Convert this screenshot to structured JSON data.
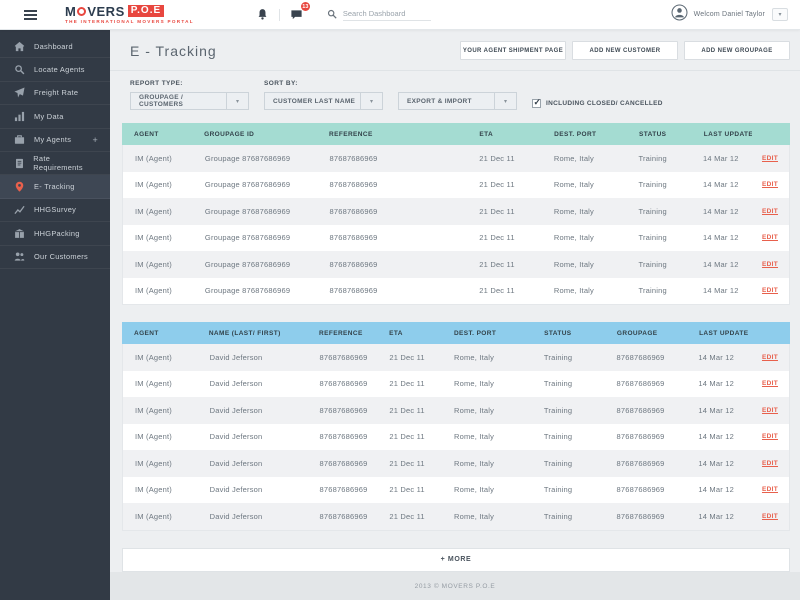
{
  "topbar": {
    "brand": {
      "word_start": "M",
      "word_end": "VERS",
      "box": "P.O.E",
      "tagline": "THE INTERNATIONAL MOVERS PORTAL"
    },
    "messages_badge": "13",
    "search_placeholder": "Search Dashboard",
    "user_greeting": "Welcom Daniel Taylor"
  },
  "sidebar": {
    "items": [
      {
        "label": "Dashboard",
        "icon": "home"
      },
      {
        "label": "Locate Agents",
        "icon": "search"
      },
      {
        "label": "Freight Rate",
        "icon": "plane"
      },
      {
        "label": "My Data",
        "icon": "bar-chart"
      },
      {
        "label": "My Agents",
        "icon": "briefcase",
        "suffix": "+"
      },
      {
        "label": "Rate Requirements",
        "icon": "clipboard"
      },
      {
        "label": "E- Tracking",
        "icon": "map-pin",
        "active": true
      },
      {
        "label": "HHGSurvey",
        "icon": "line-chart"
      },
      {
        "label": "HHGPacking",
        "icon": "package"
      },
      {
        "label": "Our Customers",
        "icon": "users"
      }
    ]
  },
  "page": {
    "title": "E - Tracking",
    "buttons": {
      "agent_shipment": "YOUR AGENT SHIPMENT PAGE",
      "add_customer": "ADD NEW CUSTOMER",
      "add_groupage": "ADD NEW GROUPAGE"
    }
  },
  "filters": {
    "report_type_label": "REPORT TYPE:",
    "report_type_value": "GROUPAGE / CUSTOMERS",
    "sort_by_label": "SORT BY:",
    "sort_by_value": "CUSTOMER LAST NAME",
    "export_import_value": "EXPORT & IMPORT",
    "checkbox_label": "INCLUDING CLOSED/ CANCELLED",
    "checkbox_checked": true
  },
  "groupage_table": {
    "headers": [
      "AGENT",
      "GROUPAGE ID",
      "REFERENCE",
      "ETA",
      "DEST. PORT",
      "STATUS",
      "LAST UPDATE"
    ],
    "edit_label": "EDIT",
    "rows": [
      [
        "IM (Agent)",
        "Groupage 87687686969",
        "87687686969",
        "21 Dec 11",
        "Rome, Italy",
        "Training",
        "14 Mar 12"
      ],
      [
        "IM (Agent)",
        "Groupage 87687686969",
        "87687686969",
        "21 Dec 11",
        "Rome, Italy",
        "Training",
        "14 Mar 12"
      ],
      [
        "IM (Agent)",
        "Groupage 87687686969",
        "87687686969",
        "21 Dec 11",
        "Rome, Italy",
        "Training",
        "14 Mar 12"
      ],
      [
        "IM (Agent)",
        "Groupage 87687686969",
        "87687686969",
        "21 Dec 11",
        "Rome, Italy",
        "Training",
        "14 Mar 12"
      ],
      [
        "IM (Agent)",
        "Groupage 87687686969",
        "87687686969",
        "21 Dec 11",
        "Rome, Italy",
        "Training",
        "14 Mar 12"
      ],
      [
        "IM (Agent)",
        "Groupage 87687686969",
        "87687686969",
        "21 Dec 11",
        "Rome, Italy",
        "Training",
        "14 Mar 12"
      ]
    ]
  },
  "customers_table": {
    "headers": [
      "AGENT",
      "NAME (LAST/ FIRST)",
      "REFERENCE",
      "ETA",
      "DEST. PORT",
      "STATUS",
      "GROUPAGE",
      "LAST UPDATE"
    ],
    "edit_label": "EDIT",
    "rows": [
      [
        "IM (Agent)",
        "David Jeferson",
        "87687686969",
        "21 Dec 11",
        "Rome, Italy",
        "Training",
        "87687686969",
        "14 Mar 12"
      ],
      [
        "IM (Agent)",
        "David Jeferson",
        "87687686969",
        "21 Dec 11",
        "Rome, Italy",
        "Training",
        "87687686969",
        "14 Mar 12"
      ],
      [
        "IM (Agent)",
        "David Jeferson",
        "87687686969",
        "21 Dec 11",
        "Rome, Italy",
        "Training",
        "87687686969",
        "14 Mar 12"
      ],
      [
        "IM (Agent)",
        "David Jeferson",
        "87687686969",
        "21 Dec 11",
        "Rome, Italy",
        "Training",
        "87687686969",
        "14 Mar 12"
      ],
      [
        "IM (Agent)",
        "David Jeferson",
        "87687686969",
        "21 Dec 11",
        "Rome, Italy",
        "Training",
        "87687686969",
        "14 Mar 12"
      ],
      [
        "IM (Agent)",
        "David Jeferson",
        "87687686969",
        "21 Dec 11",
        "Rome, Italy",
        "Training",
        "87687686969",
        "14 Mar 12"
      ],
      [
        "IM (Agent)",
        "David Jeferson",
        "87687686969",
        "21 Dec 11",
        "Rome, Italy",
        "Training",
        "87687686969",
        "14 Mar 12"
      ]
    ]
  },
  "more_button_label": "+ MORE",
  "footer_text": "2013 © MOVERS P.O.E",
  "colors": {
    "brand_red": "#e8473f",
    "sidebar_bg": "#323a45",
    "sidebar_active_bg": "#3e4754",
    "groupage_header": "#a4dcd2",
    "customers_header": "#8ecdec",
    "edit_link": "#e8604c",
    "row_stripe": "#f0f1f3"
  }
}
